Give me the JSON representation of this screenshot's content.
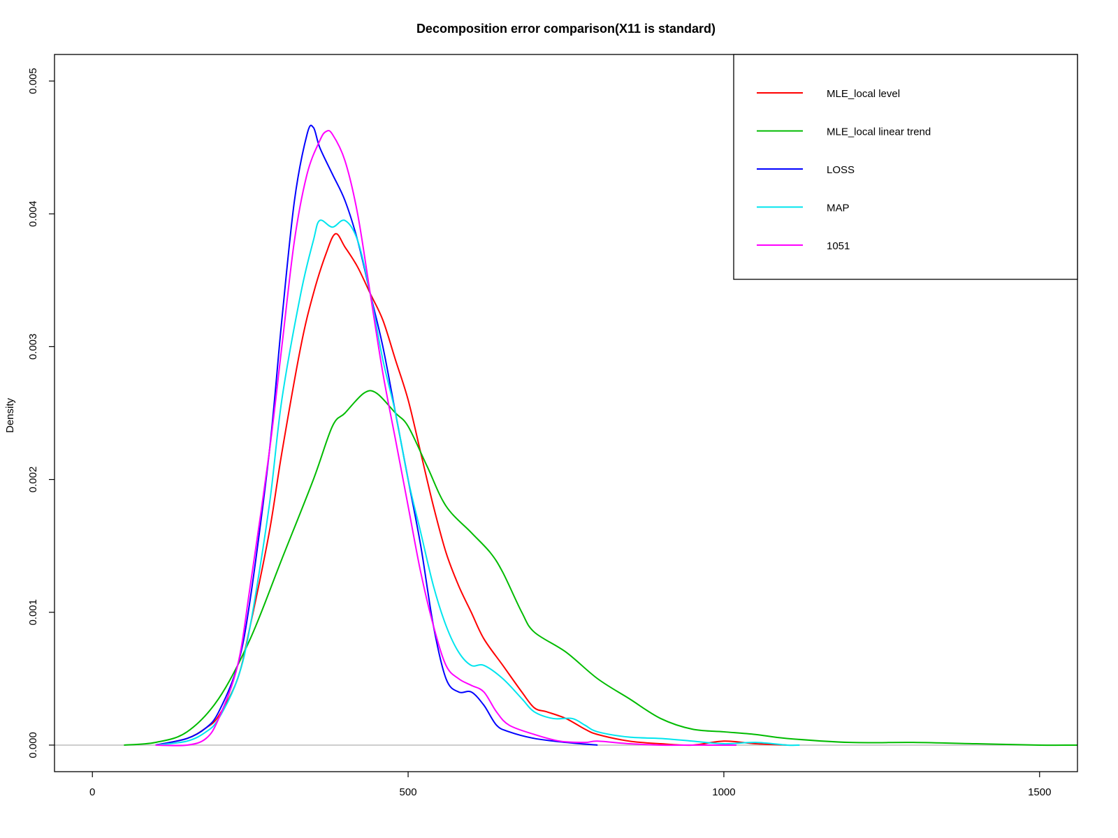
{
  "chart_data": {
    "type": "line",
    "title": "Decomposition error comparison(X11 is standard)",
    "xlabel": "",
    "ylabel": "Density",
    "xlim": [
      -60,
      1560
    ],
    "ylim": [
      -0.0002,
      0.0052
    ],
    "x_ticks": [
      0,
      500,
      1000,
      1500
    ],
    "x_tick_labels": [
      "0",
      "500",
      "1000",
      "1500"
    ],
    "y_ticks": [
      0.0,
      0.001,
      0.002,
      0.003,
      0.004,
      0.005
    ],
    "y_tick_labels": [
      "0.000",
      "0.001",
      "0.002",
      "0.003",
      "0.004",
      "0.005"
    ],
    "zero_line_color": "#bebebe",
    "legend_position": "top-right",
    "series": [
      {
        "name": "MLE_local level",
        "color": "#ff0000",
        "x": [
          100,
          150,
          180,
          200,
          230,
          250,
          280,
          300,
          330,
          350,
          370,
          385,
          400,
          420,
          440,
          460,
          480,
          500,
          520,
          540,
          560,
          580,
          600,
          620,
          650,
          680,
          700,
          720,
          750,
          780,
          800,
          850,
          900,
          950,
          1000,
          1050,
          1100
        ],
        "y": [
          0.0,
          5e-05,
          0.00013,
          0.00022,
          0.0005,
          0.0009,
          0.0016,
          0.0022,
          0.003,
          0.0034,
          0.0037,
          0.00385,
          0.00375,
          0.0036,
          0.0034,
          0.0032,
          0.0029,
          0.0026,
          0.0022,
          0.0018,
          0.00145,
          0.0012,
          0.001,
          0.0008,
          0.0006,
          0.0004,
          0.00028,
          0.00025,
          0.0002,
          0.00012,
          8e-05,
          3e-05,
          1e-05,
          0.0,
          3e-05,
          1e-05,
          0.0
        ]
      },
      {
        "name": "MLE_local linear trend",
        "color": "#00bb00",
        "x": [
          50,
          100,
          150,
          200,
          250,
          300,
          350,
          380,
          400,
          430,
          450,
          480,
          500,
          530,
          560,
          600,
          630,
          650,
          680,
          700,
          750,
          800,
          850,
          900,
          950,
          1000,
          1050,
          1100,
          1200,
          1300,
          1400,
          1500,
          1560
        ],
        "y": [
          0.0,
          2e-05,
          0.0001,
          0.00035,
          0.0008,
          0.0014,
          0.002,
          0.0024,
          0.0025,
          0.00265,
          0.00265,
          0.0025,
          0.0024,
          0.0021,
          0.0018,
          0.0016,
          0.00145,
          0.0013,
          0.001,
          0.00085,
          0.0007,
          0.0005,
          0.00035,
          0.0002,
          0.00012,
          0.0001,
          8e-05,
          5e-05,
          2e-05,
          2e-05,
          1e-05,
          0.0,
          0.0
        ]
      },
      {
        "name": "LOSS",
        "color": "#0000ff",
        "x": [
          100,
          150,
          180,
          200,
          230,
          250,
          280,
          300,
          320,
          340,
          350,
          360,
          380,
          400,
          420,
          440,
          460,
          480,
          500,
          520,
          540,
          560,
          580,
          600,
          620,
          640,
          660,
          700,
          750,
          800
        ],
        "y": [
          0.0,
          5e-05,
          0.00013,
          0.00025,
          0.0006,
          0.0011,
          0.0022,
          0.0032,
          0.0041,
          0.0046,
          0.00465,
          0.0045,
          0.0043,
          0.0041,
          0.0038,
          0.0034,
          0.003,
          0.0025,
          0.002,
          0.0015,
          0.0009,
          0.0005,
          0.0004,
          0.0004,
          0.0003,
          0.00015,
          0.0001,
          5e-05,
          2e-05,
          0.0
        ]
      },
      {
        "name": "MAP",
        "color": "#00e5ee",
        "x": [
          100,
          150,
          180,
          200,
          230,
          250,
          280,
          300,
          330,
          350,
          360,
          380,
          400,
          420,
          440,
          460,
          480,
          500,
          520,
          540,
          560,
          580,
          600,
          620,
          650,
          680,
          700,
          730,
          760,
          780,
          800,
          850,
          900,
          950,
          1000,
          1050,
          1100,
          1120
        ],
        "y": [
          0.0,
          3e-05,
          0.0001,
          0.0002,
          0.0005,
          0.0009,
          0.0018,
          0.0026,
          0.0034,
          0.0038,
          0.00395,
          0.0039,
          0.00395,
          0.0038,
          0.0034,
          0.0029,
          0.0025,
          0.002,
          0.0016,
          0.0012,
          0.0009,
          0.0007,
          0.0006,
          0.0006,
          0.0005,
          0.00035,
          0.00025,
          0.0002,
          0.0002,
          0.00015,
          0.0001,
          6e-05,
          5e-05,
          3e-05,
          1e-05,
          2e-05,
          0.0,
          0.0
        ]
      },
      {
        "name": "1051",
        "color": "#ff00ff",
        "x": [
          100,
          150,
          180,
          200,
          230,
          250,
          280,
          300,
          320,
          340,
          360,
          370,
          380,
          400,
          420,
          440,
          460,
          480,
          500,
          520,
          540,
          560,
          580,
          600,
          620,
          640,
          660,
          700,
          740,
          780,
          800,
          850,
          900,
          950,
          1000,
          1020
        ],
        "y": [
          0.0,
          0.0,
          5e-05,
          0.0002,
          0.0006,
          0.0012,
          0.0022,
          0.003,
          0.0038,
          0.0043,
          0.00455,
          0.00462,
          0.0046,
          0.0044,
          0.004,
          0.0034,
          0.0028,
          0.0023,
          0.0018,
          0.0013,
          0.0009,
          0.0006,
          0.0005,
          0.00045,
          0.0004,
          0.00025,
          0.00015,
          8e-05,
          3e-05,
          2e-05,
          3e-05,
          1e-05,
          0.0,
          0.0,
          0.0,
          0.0
        ]
      }
    ]
  }
}
